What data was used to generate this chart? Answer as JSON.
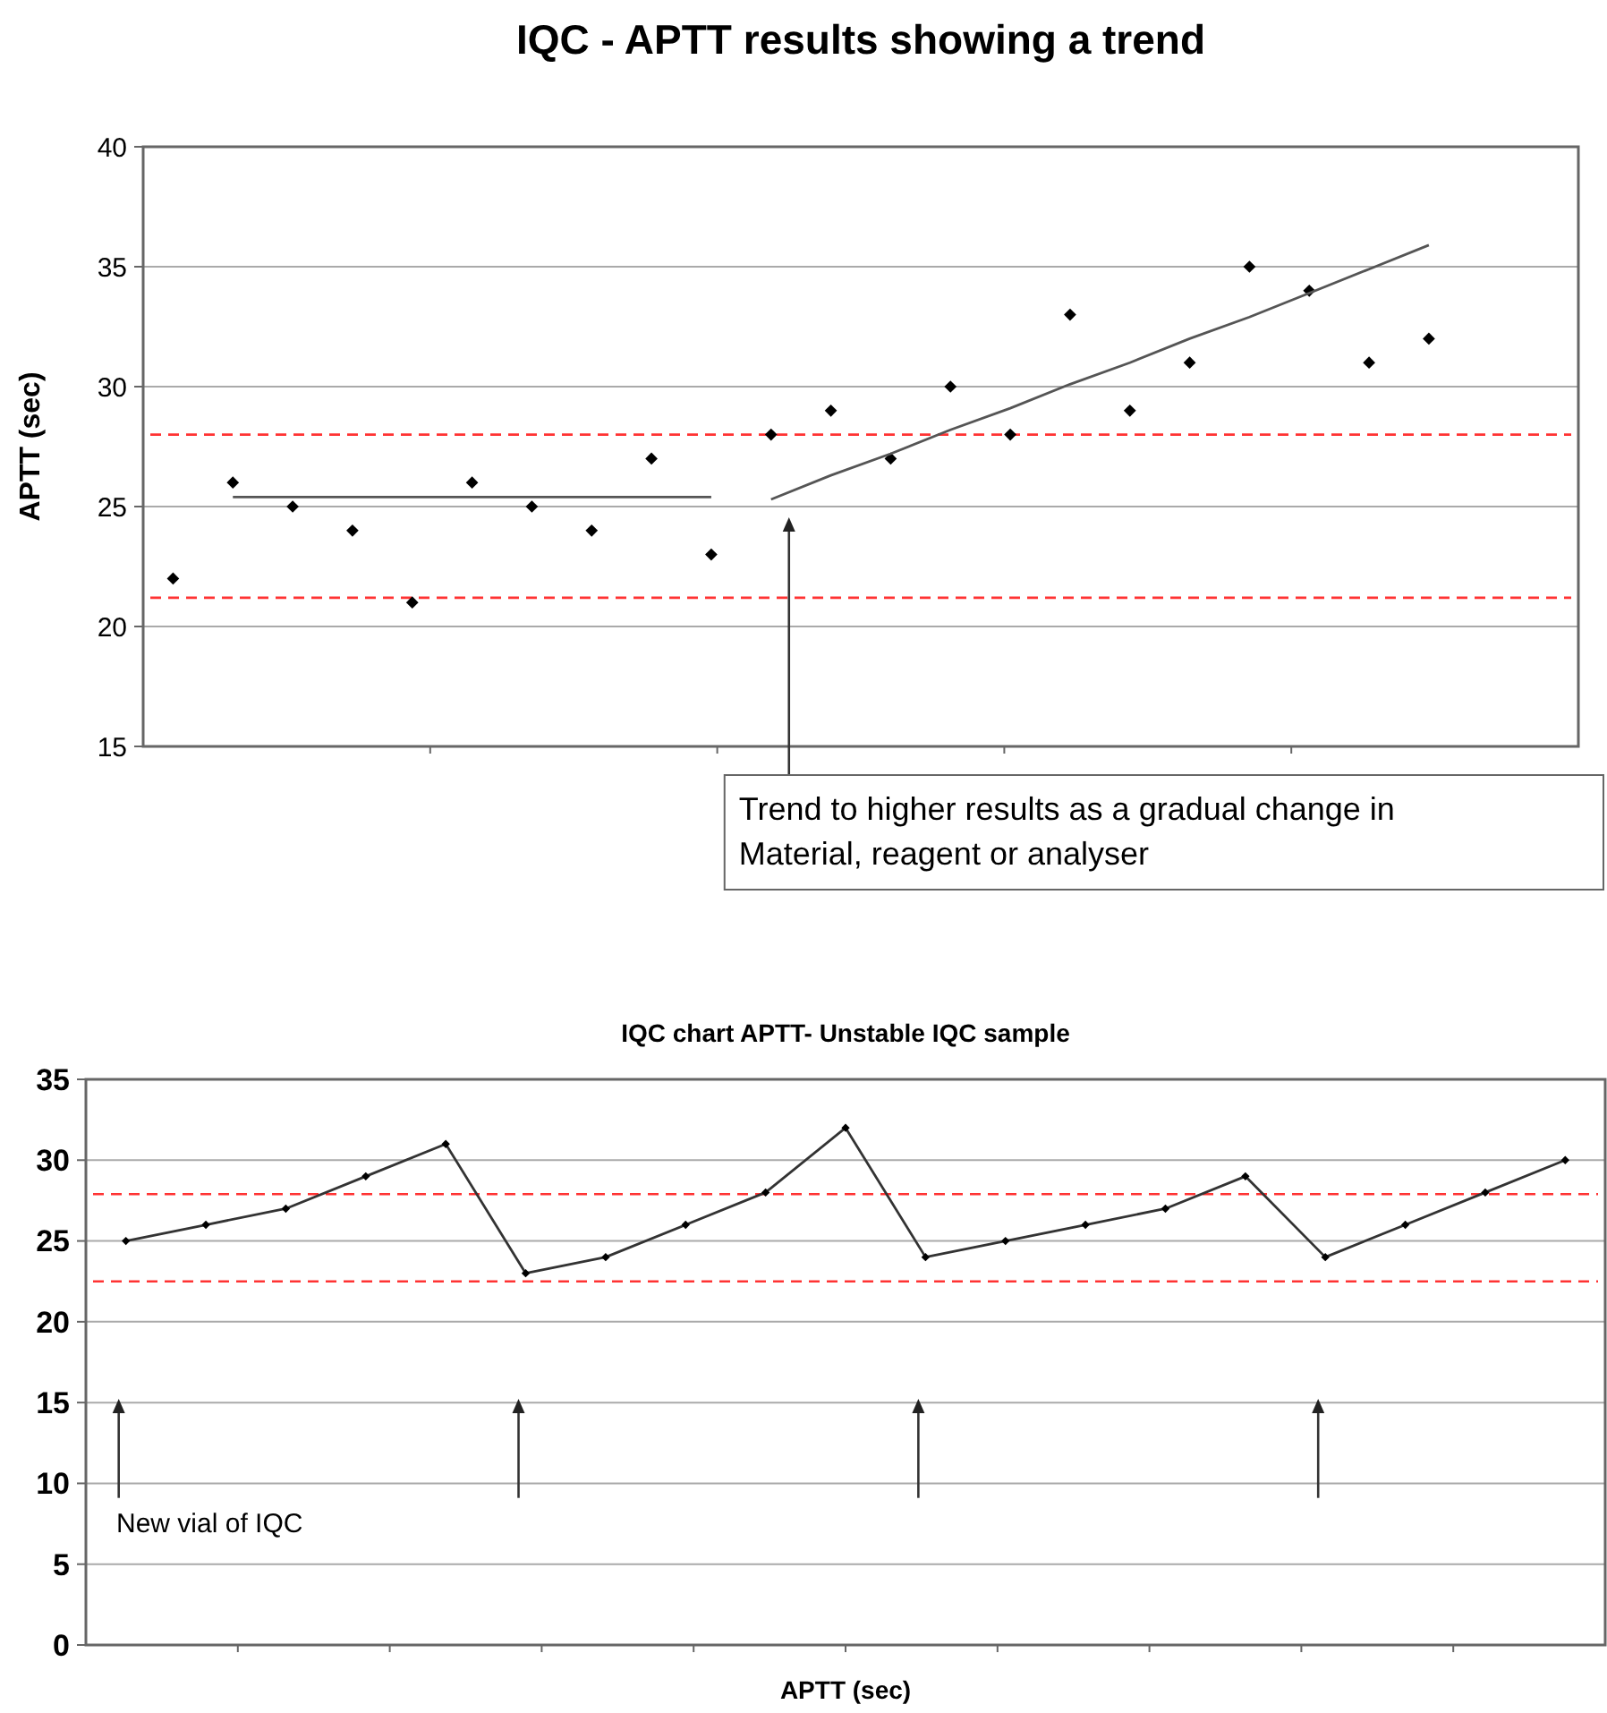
{
  "chart_data": [
    {
      "type": "scatter",
      "title": "IQC - APTT results showing a trend",
      "ylabel": "APTT (sec)",
      "categories": [
        null,
        null,
        null,
        null,
        null,
        null,
        null,
        null,
        null,
        null,
        null,
        null,
        null,
        null,
        null,
        null,
        null,
        null,
        null,
        null,
        null,
        null,
        null,
        null
      ],
      "ylim": [
        15,
        40
      ],
      "yticks": [
        15,
        20,
        25,
        30,
        35,
        40
      ],
      "grid": "y",
      "marker": "diamond",
      "series": [
        {
          "type": "scatter",
          "color": "#000000",
          "values": [
            22,
            26,
            25,
            24,
            21,
            26,
            25,
            24,
            27,
            23,
            28,
            29,
            27,
            30,
            28,
            33,
            29,
            31,
            35,
            34,
            31,
            32,
            null,
            null
          ]
        },
        {
          "type": "line",
          "color": "#555555",
          "marker": "none",
          "values": [
            null,
            25.4,
            25.4,
            25.4,
            25.4,
            25.4,
            25.4,
            25.4,
            25.4,
            25.4,
            null,
            null,
            null,
            null,
            null,
            null,
            null,
            null,
            null,
            null,
            null,
            null,
            null,
            null
          ]
        },
        {
          "type": "line",
          "color": "#555555",
          "marker": "none",
          "values": [
            null,
            null,
            null,
            null,
            null,
            null,
            null,
            null,
            null,
            null,
            25.3,
            26.3,
            27.2,
            28.2,
            29.1,
            30.1,
            31.0,
            32.0,
            32.9,
            33.9,
            34.9,
            35.9,
            null,
            null
          ]
        }
      ],
      "ref_lines": [
        {
          "axis": "y",
          "value": 28,
          "color": "#ff3333",
          "line_style": "dashed"
        },
        {
          "axis": "y",
          "value": 21.2,
          "color": "#ff3333",
          "line_style": "dashed"
        }
      ],
      "annotations": [
        "Trend to higher results as a gradual change in Material, reagent or analyser"
      ]
    },
    {
      "type": "line",
      "title": "IQC chart APTT- Unstable IQC sample",
      "xlabel": "APTT (sec)",
      "categories": [
        null,
        null,
        null,
        null,
        null,
        null,
        null,
        null,
        null,
        null,
        null,
        null,
        null,
        null,
        null,
        null,
        null,
        null,
        null
      ],
      "ylim": [
        0,
        35
      ],
      "yticks": [
        0,
        5,
        10,
        15,
        20,
        25,
        30,
        35
      ],
      "grid": "y",
      "marker": "diamond",
      "series": [
        {
          "type": "line",
          "color": "#333333",
          "values": [
            25,
            26,
            27,
            29,
            31,
            23,
            24,
            26,
            28,
            32,
            24,
            25,
            26,
            27,
            29,
            24,
            26,
            28,
            30
          ]
        }
      ],
      "ref_lines": [
        {
          "axis": "y",
          "value": 27.9,
          "color": "#ff3333",
          "line_style": "dashed"
        },
        {
          "axis": "y",
          "value": 22.5,
          "color": "#ff3333",
          "line_style": "dashed"
        }
      ],
      "annotations": [
        "New vial of IQC"
      ]
    }
  ]
}
